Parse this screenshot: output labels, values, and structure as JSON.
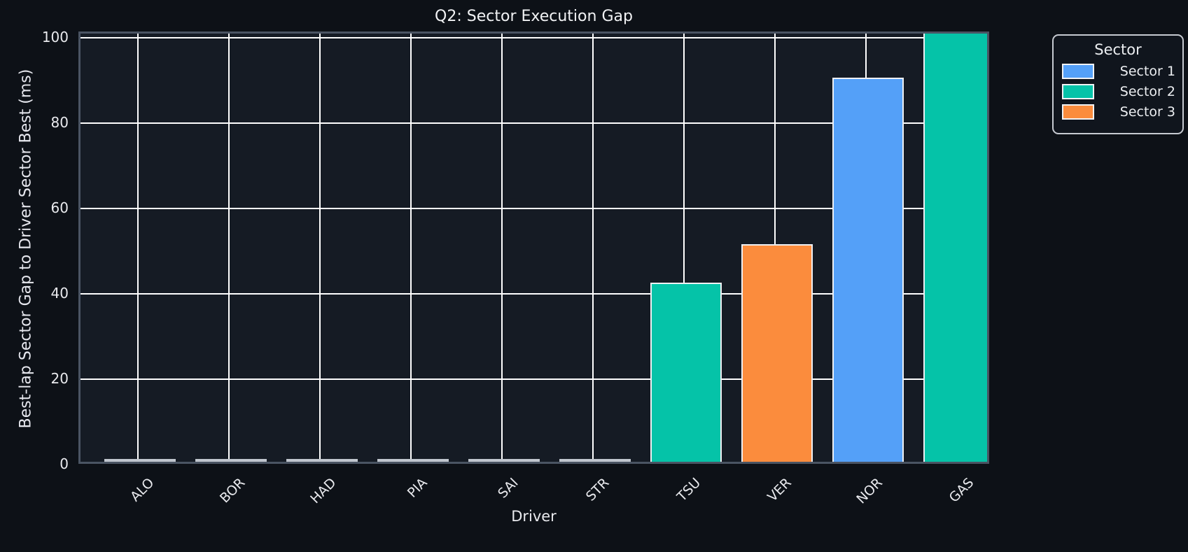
{
  "title": "Q2: Sector Execution Gap",
  "legend": {
    "title": "Sector",
    "entries": [
      {
        "label": "Sector 1",
        "color": "#54a0f8"
      },
      {
        "label": "Sector 2",
        "color": "#05c3a8"
      },
      {
        "label": "Sector 3",
        "color": "#fb8c3d"
      }
    ]
  },
  "colors": {
    "figure_bg": "#0d1117",
    "plot_bg": "#151b24",
    "spine": "#4a5463",
    "gridline": "#ffffff",
    "text": "#e9eaee",
    "bar_edge": "#eef0f3",
    "zero_bar": "#c0c6ce"
  },
  "chart_data": {
    "type": "bar",
    "title": "Q2: Sector Execution Gap",
    "xlabel": "Driver",
    "ylabel": "Best-lap Sector Gap to Driver Sector Best (ms)",
    "categories": [
      "ALO",
      "BOR",
      "HAD",
      "PIA",
      "SAI",
      "STR",
      "TSU",
      "VER",
      "NOR",
      "GAS"
    ],
    "values": [
      0,
      0,
      0,
      0,
      0,
      0,
      42,
      51,
      90,
      101
    ],
    "bar_sectors": [
      null,
      null,
      null,
      null,
      null,
      null,
      "Sector 2",
      "Sector 3",
      "Sector 1",
      "Sector 2"
    ],
    "series": [
      {
        "name": "Sector 1",
        "bars": [
          {
            "category": "NOR",
            "value": 90
          }
        ]
      },
      {
        "name": "Sector 2",
        "bars": [
          {
            "category": "TSU",
            "value": 42
          },
          {
            "category": "GAS",
            "value": 101
          }
        ]
      },
      {
        "name": "Sector 3",
        "bars": [
          {
            "category": "VER",
            "value": 51
          }
        ]
      }
    ],
    "yticks": [
      0,
      20,
      40,
      60,
      80,
      100
    ],
    "ylim": [
      0,
      101.3
    ],
    "grid": true,
    "legend_title": "Sector",
    "legend_position": "upper right, outside plot"
  }
}
